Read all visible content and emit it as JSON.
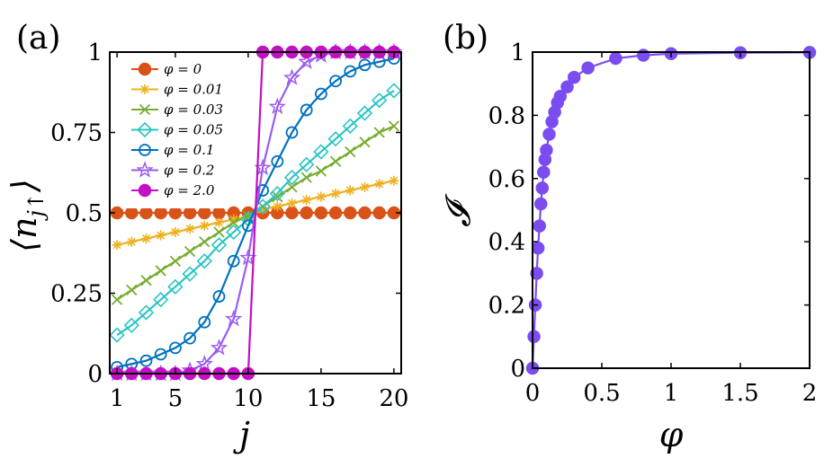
{
  "panel_labels": {
    "a": "(a)",
    "b": "(b)"
  },
  "colors": {
    "0": "#D95319",
    "0.01": "#EDB120",
    "0.03": "#77AC30",
    "0.05": "#2CC4C4",
    "0.1": "#0072BD",
    "0.2": "#9A5CF2",
    "2.0": "#C40FC4",
    "panel_b": "#7B4DF0"
  },
  "chart_data": [
    {
      "id": "a",
      "type": "line",
      "xlabel": "j",
      "ylabel": "⟨n_j↑⟩",
      "ylabel_main": "⟨n",
      "ylabel_sub": "j↑",
      "ylabel_close": "⟩",
      "xlim": [
        0.5,
        20.5
      ],
      "ylim": [
        0,
        1
      ],
      "xticks": [
        1,
        5,
        10,
        15,
        20
      ],
      "xtick_labels": [
        "1",
        "5",
        "10",
        "15",
        "20"
      ],
      "yticks": [
        0,
        0.25,
        0.5,
        0.75,
        1
      ],
      "ytick_labels": [
        "0",
        "0.25",
        "0.5",
        "0.75",
        "1"
      ],
      "legend_position": "top-left",
      "x": [
        1,
        2,
        3,
        4,
        5,
        6,
        7,
        8,
        9,
        10,
        11,
        12,
        13,
        14,
        15,
        16,
        17,
        18,
        19,
        20
      ],
      "series": [
        {
          "name": "φ = 0",
          "color_key": "0",
          "marker": "filled-circle",
          "values": [
            0.5,
            0.5,
            0.5,
            0.5,
            0.5,
            0.5,
            0.5,
            0.5,
            0.5,
            0.5,
            0.5,
            0.5,
            0.5,
            0.5,
            0.5,
            0.5,
            0.5,
            0.5,
            0.5,
            0.5
          ]
        },
        {
          "name": "φ = 0.01",
          "color_key": "0.01",
          "marker": "asterisk",
          "values": [
            0.4,
            0.41,
            0.42,
            0.43,
            0.44,
            0.45,
            0.46,
            0.47,
            0.48,
            0.49,
            0.51,
            0.52,
            0.53,
            0.54,
            0.55,
            0.56,
            0.57,
            0.58,
            0.59,
            0.6
          ]
        },
        {
          "name": "φ = 0.03",
          "color_key": "0.03",
          "marker": "x",
          "values": [
            0.23,
            0.26,
            0.29,
            0.32,
            0.35,
            0.38,
            0.41,
            0.44,
            0.47,
            0.49,
            0.52,
            0.55,
            0.58,
            0.61,
            0.63,
            0.66,
            0.69,
            0.72,
            0.75,
            0.77
          ]
        },
        {
          "name": "φ = 0.05",
          "color_key": "0.05",
          "marker": "diamond",
          "values": [
            0.12,
            0.15,
            0.19,
            0.23,
            0.27,
            0.31,
            0.35,
            0.4,
            0.44,
            0.48,
            0.52,
            0.56,
            0.61,
            0.65,
            0.69,
            0.73,
            0.77,
            0.81,
            0.85,
            0.88
          ]
        },
        {
          "name": "φ = 0.1",
          "color_key": "0.1",
          "marker": "circle",
          "values": [
            0.02,
            0.03,
            0.04,
            0.06,
            0.08,
            0.11,
            0.16,
            0.24,
            0.35,
            0.46,
            0.57,
            0.66,
            0.75,
            0.82,
            0.87,
            0.91,
            0.94,
            0.96,
            0.97,
            0.98
          ]
        },
        {
          "name": "φ = 0.2",
          "color_key": "0.2",
          "marker": "pentagram",
          "values": [
            0.0,
            0.0,
            0.0,
            0.0,
            0.0,
            0.01,
            0.03,
            0.08,
            0.17,
            0.36,
            0.64,
            0.83,
            0.92,
            0.97,
            0.99,
            1.0,
            1.0,
            1.0,
            1.0,
            1.0
          ]
        },
        {
          "name": "φ = 2.0",
          "color_key": "2.0",
          "marker": "filled-circle",
          "values": [
            0,
            0,
            0,
            0,
            0,
            0,
            0,
            0,
            0,
            0,
            1,
            1,
            1,
            1,
            1,
            1,
            1,
            1,
            1,
            1
          ]
        }
      ]
    },
    {
      "id": "b",
      "type": "line",
      "xlabel": "φ",
      "ylabel": "𝓘",
      "xlim": [
        0,
        2
      ],
      "ylim": [
        0,
        1
      ],
      "xticks": [
        0,
        0.5,
        1,
        1.5,
        2
      ],
      "xtick_labels": [
        "0",
        "0.5",
        "1",
        "1.5",
        "2"
      ],
      "yticks": [
        0,
        0.2,
        0.4,
        0.6,
        0.8,
        1
      ],
      "ytick_labels": [
        "0",
        "0.2",
        "0.4",
        "0.6",
        "0.8",
        "1"
      ],
      "color_key": "panel_b",
      "marker": "filled-circle",
      "x": [
        0,
        0.01,
        0.02,
        0.03,
        0.04,
        0.05,
        0.06,
        0.07,
        0.08,
        0.09,
        0.1,
        0.12,
        0.14,
        0.16,
        0.18,
        0.2,
        0.25,
        0.3,
        0.4,
        0.6,
        0.8,
        1.0,
        1.5,
        2.0
      ],
      "y": [
        0,
        0.1,
        0.2,
        0.3,
        0.38,
        0.45,
        0.52,
        0.57,
        0.62,
        0.66,
        0.69,
        0.74,
        0.78,
        0.81,
        0.84,
        0.86,
        0.89,
        0.92,
        0.95,
        0.98,
        0.99,
        0.995,
        0.998,
        0.999
      ]
    }
  ]
}
